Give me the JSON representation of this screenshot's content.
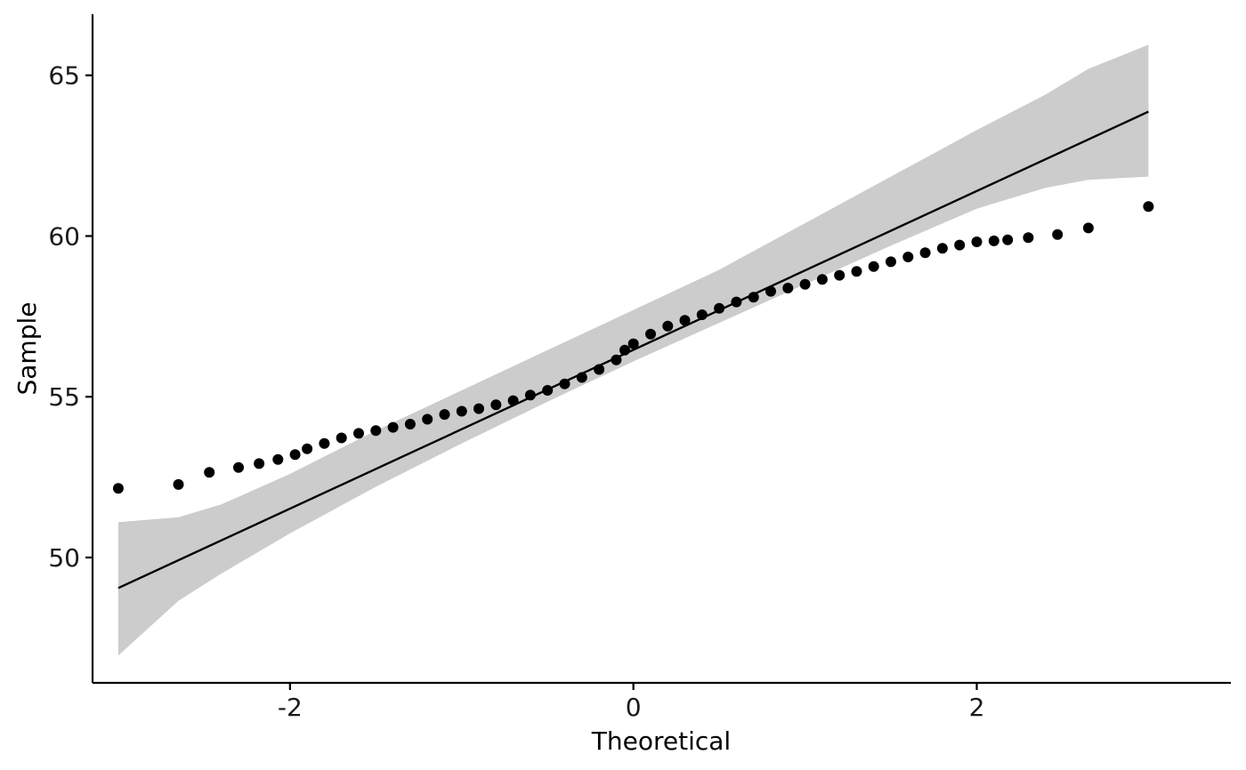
{
  "chart_data": {
    "type": "scatter",
    "subtype": "qq-plot",
    "title": "",
    "xlabel": "Theoretical",
    "ylabel": "Sample",
    "xlim": [
      -3.15,
      3.48
    ],
    "ylim": [
      46.1,
      66.9
    ],
    "x_ticks": [
      -2,
      0,
      2
    ],
    "y_ticks": [
      50,
      55,
      60,
      65
    ],
    "x_tick_labels": [
      "-2",
      "0",
      "2"
    ],
    "y_tick_labels": [
      "50",
      "55",
      "60",
      "65"
    ],
    "grid": false,
    "legend": "none",
    "reference_line": {
      "x": [
        -3.0,
        3.0
      ],
      "y": [
        49.05,
        63.87
      ]
    },
    "confidence_band": {
      "x": [
        -3.0,
        -2.65,
        -2.4,
        -2.0,
        -1.5,
        -1.0,
        -0.5,
        0.0,
        0.5,
        1.0,
        1.5,
        2.0,
        2.4,
        2.65,
        3.0
      ],
      "lower": [
        46.95,
        48.65,
        49.5,
        50.75,
        52.2,
        53.55,
        54.85,
        56.1,
        57.3,
        58.5,
        59.7,
        60.85,
        61.5,
        61.75,
        61.85
      ],
      "upper": [
        51.1,
        51.25,
        51.65,
        52.6,
        53.95,
        55.2,
        56.45,
        57.7,
        58.95,
        60.4,
        61.85,
        63.3,
        64.4,
        65.2,
        65.95
      ]
    },
    "points": {
      "x": [
        -3.0,
        -2.65,
        -2.47,
        -2.3,
        -2.18,
        -2.07,
        -1.97,
        -1.9,
        -1.8,
        -1.7,
        -1.6,
        -1.5,
        -1.4,
        -1.3,
        -1.2,
        -1.1,
        -1.0,
        -0.9,
        -0.8,
        -0.7,
        -0.6,
        -0.5,
        -0.4,
        -0.3,
        -0.2,
        -0.1,
        -0.05,
        0.0,
        0.1,
        0.2,
        0.3,
        0.4,
        0.5,
        0.6,
        0.7,
        0.8,
        0.9,
        1.0,
        1.1,
        1.2,
        1.3,
        1.4,
        1.5,
        1.6,
        1.7,
        1.8,
        1.9,
        2.0,
        2.1,
        2.18,
        2.3,
        2.47,
        2.65,
        3.0
      ],
      "y": [
        52.15,
        52.27,
        52.65,
        52.8,
        52.92,
        53.05,
        53.2,
        53.38,
        53.55,
        53.72,
        53.86,
        53.95,
        54.05,
        54.15,
        54.3,
        54.45,
        54.55,
        54.63,
        54.75,
        54.88,
        55.05,
        55.2,
        55.4,
        55.6,
        55.85,
        56.15,
        56.45,
        56.65,
        56.95,
        57.2,
        57.38,
        57.55,
        57.75,
        57.95,
        58.1,
        58.28,
        58.38,
        58.5,
        58.65,
        58.78,
        58.9,
        59.05,
        59.2,
        59.35,
        59.48,
        59.62,
        59.72,
        59.82,
        59.85,
        59.88,
        59.95,
        60.05,
        60.25,
        60.92
      ]
    },
    "colors": {
      "points": "#000000",
      "reference_line": "#000000",
      "confidence_band": "#cccccc",
      "axis": "#000000"
    }
  }
}
